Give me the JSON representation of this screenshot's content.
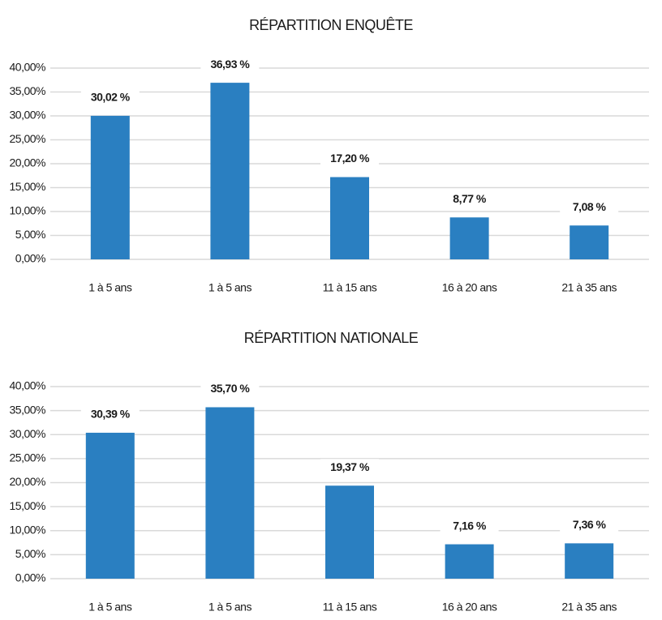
{
  "chart_data": [
    {
      "type": "bar",
      "title": "RÉPARTITION ENQUÊTE",
      "categories": [
        "1 à 5 ans",
        "1 à 5 ans",
        "11 à 15 ans",
        "16 à 20 ans",
        "21 à 35 ans"
      ],
      "values": [
        30.02,
        36.93,
        17.2,
        8.77,
        7.08
      ],
      "value_labels": [
        "30,02 %",
        "36,93 %",
        "17,20 %",
        "8,77 %",
        "7,08 %"
      ],
      "color": "#2a7fc1",
      "ylim": [
        0,
        40
      ],
      "yticks": [
        {
          "value": 0,
          "label": "0,00%"
        },
        {
          "value": 5,
          "label": "5,00%"
        },
        {
          "value": 10,
          "label": "10,00%"
        },
        {
          "value": 15,
          "label": "15,00%"
        },
        {
          "value": 20,
          "label": "20,00%"
        },
        {
          "value": 25,
          "label": "25,00%"
        },
        {
          "value": 30,
          "label": "30,00%"
        },
        {
          "value": 35,
          "label": "35,00%"
        },
        {
          "value": 40,
          "label": "40,00%"
        }
      ],
      "grid": true
    },
    {
      "type": "bar",
      "title": "RÉPARTITION NATIONALE",
      "categories": [
        "1 à 5 ans",
        "1 à 5 ans",
        "11 à 15 ans",
        "16 à 20 ans",
        "21 à 35 ans"
      ],
      "values": [
        30.39,
        35.7,
        19.37,
        7.16,
        7.36
      ],
      "value_labels": [
        "30,39 %",
        "35,70 %",
        "19,37 %",
        "7,16 %",
        "7,36 %"
      ],
      "color": "#2a7fc1",
      "ylim": [
        0,
        40
      ],
      "yticks": [
        {
          "value": 0,
          "label": "0,00%"
        },
        {
          "value": 5,
          "label": "5,00%"
        },
        {
          "value": 10,
          "label": "10,00%"
        },
        {
          "value": 15,
          "label": "15,00%"
        },
        {
          "value": 20,
          "label": "20,00%"
        },
        {
          "value": 25,
          "label": "25,00%"
        },
        {
          "value": 30,
          "label": "30,00%"
        },
        {
          "value": 35,
          "label": "35,00%"
        },
        {
          "value": 40,
          "label": "40,00%"
        }
      ],
      "grid": true
    }
  ]
}
